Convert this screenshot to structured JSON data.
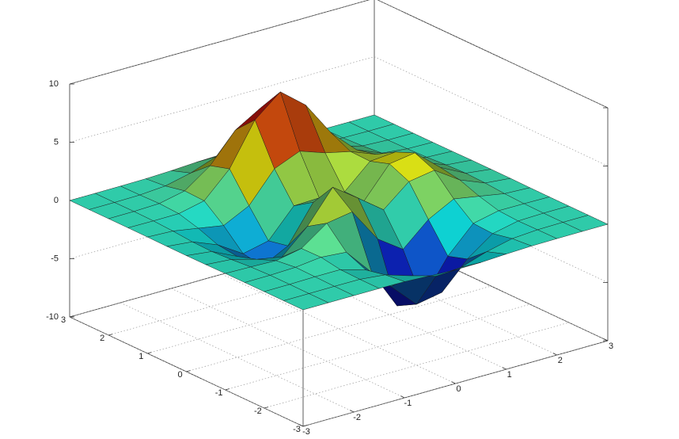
{
  "chart_data": {
    "type": "surface",
    "colormap": "jet",
    "grid": true,
    "x": [
      -3,
      -2.5,
      -2,
      -1.5,
      -1,
      -0.5,
      0,
      0.5,
      1,
      1.5,
      2,
      2.5,
      3
    ],
    "y": [
      -3,
      -2.5,
      -2,
      -1.5,
      -1,
      -0.5,
      0,
      0.5,
      1,
      1.5,
      2,
      2.5,
      3
    ],
    "z": [
      [
        0,
        0,
        0,
        0,
        -0.03,
        -0.14,
        -0.24,
        -0.22,
        -0.11,
        -0.03,
        -0.01,
        0,
        0
      ],
      [
        0,
        0,
        0.01,
        0,
        -0.23,
        -0.92,
        -1.57,
        -1.41,
        -0.69,
        -0.18,
        -0.03,
        0,
        0
      ],
      [
        0,
        0.01,
        0.05,
        0.05,
        -0.59,
        -2.64,
        -4.76,
        -4.35,
        -2.1,
        -0.53,
        -0.06,
        0,
        0
      ],
      [
        0,
        0.01,
        0.08,
        0.33,
        0.15,
        -2.19,
        -5.68,
        -5.76,
        -2.64,
        -0.44,
        0.04,
        0.03,
        0
      ],
      [
        -0.01,
        -0.06,
        -0.13,
        0.3,
        1.86,
        2.22,
        -0.72,
        -2.22,
        -0.27,
        0.88,
        0.5,
        0.11,
        0.01
      ],
      [
        -0.03,
        -0.2,
        -0.8,
        -1.21,
        0.8,
        3.55,
        2,
        0.39,
        2.2,
        2.56,
        1.12,
        0.24,
        0.03
      ],
      [
        -0.04,
        -0.3,
        -1.33,
        -2.77,
        -1.65,
        1.48,
        0.98,
        0.37,
        2.94,
        3.27,
        1.41,
        0.3,
        0.03
      ],
      [
        -0.03,
        -0.25,
        -1.12,
        -2.49,
        -2,
        0.39,
        0.46,
        0.38,
        2.38,
        2.56,
        1.09,
        0.23,
        0.03
      ],
      [
        -0.01,
        -0.11,
        -0.48,
        -0.86,
        0.23,
        2.79,
        3.69,
        2.93,
        2.43,
        1.58,
        0.58,
        0.11,
        0.01
      ],
      [
        0,
        -0.02,
        -0.01,
        0.48,
        2.61,
        6.2,
        8,
        6.25,
        3.25,
        1.19,
        0.29,
        0.05,
        0
      ],
      [
        0,
        0.01,
        0.08,
        0.55,
        2.1,
        4.56,
        5.86,
        4.57,
        2.21,
        0.68,
        0.13,
        0.02,
        0
      ],
      [
        0,
        0,
        0.03,
        0.19,
        0.69,
        1.47,
        1.88,
        1.47,
        0.7,
        0.2,
        0.04,
        0,
        0
      ],
      [
        0,
        0,
        0.01,
        0.03,
        0.11,
        0.23,
        0.3,
        0.23,
        0.11,
        0.03,
        0.01,
        0,
        0
      ]
    ],
    "xlim": [
      -3,
      3
    ],
    "ylim": [
      -3,
      3
    ],
    "zlim": [
      -10,
      10
    ],
    "xticks": [
      -3,
      -2,
      -1,
      0,
      1,
      2,
      3
    ],
    "yticks": [
      -3,
      -2,
      -1,
      0,
      1,
      2,
      3
    ],
    "zticks": [
      -10,
      -5,
      0,
      5,
      10
    ]
  }
}
